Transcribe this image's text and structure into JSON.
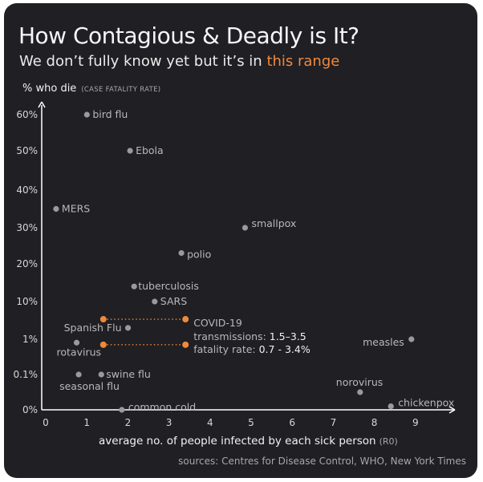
{
  "header": {
    "title": "How Contagious & Deadly is It?",
    "subtitle_prefix": "We don’t fully know yet but it’s in ",
    "subtitle_accent": "this range"
  },
  "axes": {
    "y_title": "% who die",
    "y_title_note": "(CASE FATALITY RATE)",
    "x_title": "average no. of people infected by each sick person",
    "x_title_note": "(R0)"
  },
  "footer": {
    "sources": "sources: Centres for Disease Control, WHO, New York Times"
  },
  "colors": {
    "background": "#1f1f24",
    "point": "#9a9a9a",
    "accent": "#f0893b",
    "text": "#f2f2f2",
    "muted": "#a8a8a8"
  },
  "chart_data": {
    "type": "scatter",
    "x_ticks": [
      "0",
      "1",
      "2",
      "3",
      "4",
      "5",
      "6",
      "7",
      "8",
      "9"
    ],
    "y_ticks": [
      "0%",
      "0.1%",
      "1%",
      "10%",
      "20%",
      "30%",
      "40%",
      "50%",
      "60%"
    ],
    "xlim": [
      0,
      10
    ],
    "grid": false,
    "points": [
      {
        "label": "bird flu",
        "x": 1.1,
        "y": "60%"
      },
      {
        "label": "Ebola",
        "x": 2.15,
        "y": "50%"
      },
      {
        "label": "MERS",
        "x": 0.35,
        "y": "35%"
      },
      {
        "label": "smallpox",
        "x": 4.95,
        "y": "30%"
      },
      {
        "label": "polio",
        "x": 3.4,
        "y": "23%"
      },
      {
        "label": "tuberculosis",
        "x": 2.25,
        "y": "14%"
      },
      {
        "label": "SARS",
        "x": 2.75,
        "y": "10%"
      },
      {
        "label": "Spanish Flu",
        "x": 2.1,
        "y": "2%"
      },
      {
        "label": "rotavirus",
        "x": 0.85,
        "y": "0.8%"
      },
      {
        "label": "swine flu",
        "x": 1.45,
        "y": "0.1%"
      },
      {
        "label": "seasonal flu",
        "x": 0.9,
        "y": "0.1%"
      },
      {
        "label": "measles",
        "x": 9.0,
        "y": "1%"
      },
      {
        "label": "norovirus",
        "x": 7.75,
        "y": "0.05%"
      },
      {
        "label": "chickenpox",
        "x": 8.5,
        "y": "0.01%"
      },
      {
        "label": "common cold",
        "x": 1.95,
        "y": "0%"
      }
    ],
    "covid": {
      "label": "COVID-19",
      "transmissions_label": "transmissions:",
      "transmissions_value": "1.5–3.5",
      "fatality_label": "fatality rate:",
      "fatality_value": "0.7 - 3.4%",
      "x_range": [
        1.5,
        3.5
      ],
      "y_range": [
        "0.7%",
        "3.4%"
      ]
    }
  }
}
